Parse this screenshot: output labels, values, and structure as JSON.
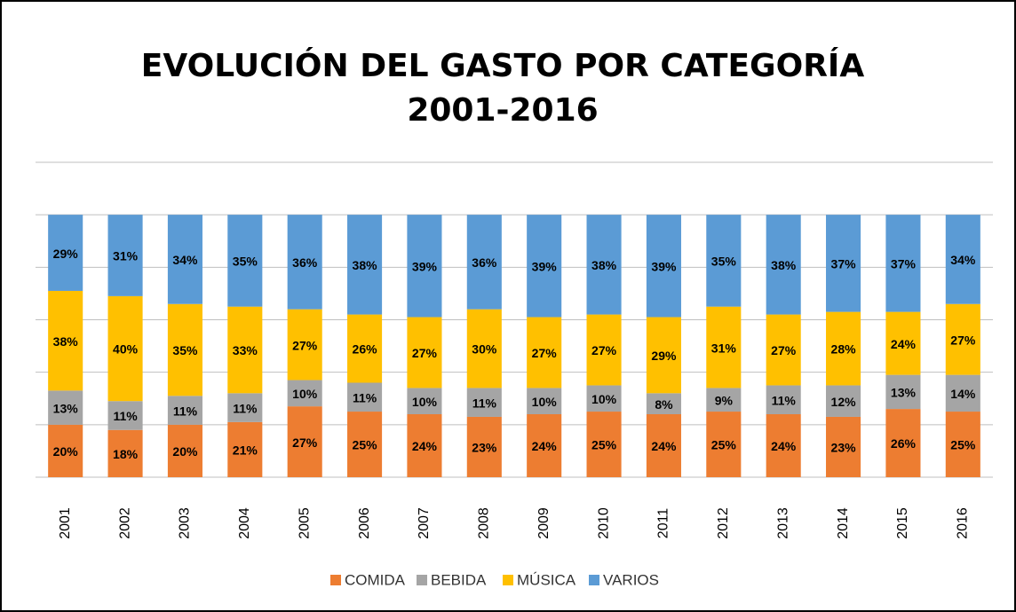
{
  "chart_data": {
    "type": "stacked_bar",
    "title": "EVOLUCIÓN DEL GASTO POR CATEGORÍA",
    "subtitle": "2001-2016",
    "categories": [
      "2001",
      "2002",
      "2003",
      "2004",
      "2005",
      "2006",
      "2007",
      "2008",
      "2009",
      "2010",
      "2011",
      "2012",
      "2013",
      "2014",
      "2015",
      "2016"
    ],
    "series": [
      {
        "name": "COMIDA",
        "color": "#ed7d31",
        "values": [
          20,
          18,
          20,
          21,
          27,
          25,
          24,
          23,
          24,
          25,
          24,
          25,
          24,
          23,
          26,
          25
        ],
        "value_labels": [
          "20%",
          "18%",
          "20%",
          "21%",
          "27%",
          "25%",
          "24%",
          "23%",
          "24%",
          "25%",
          "24%",
          "25%",
          "24%",
          "23%",
          "26%",
          "25%"
        ]
      },
      {
        "name": "BEBIDA",
        "color": "#a5a5a5",
        "values": [
          13,
          11,
          11,
          11,
          10,
          11,
          10,
          11,
          10,
          10,
          8,
          9,
          11,
          12,
          13,
          14
        ],
        "value_labels": [
          "13%",
          "11%",
          "11%",
          "11%",
          "10%",
          "11%",
          "10%",
          "11%",
          "10%",
          "10%",
          "8%",
          "9%",
          "11%",
          "12%",
          "13%",
          "14%"
        ]
      },
      {
        "name": "MÚSICA",
        "color": "#ffc000",
        "values": [
          38,
          40,
          35,
          33,
          27,
          26,
          27,
          30,
          27,
          27,
          29,
          31,
          27,
          28,
          24,
          27
        ],
        "value_labels": [
          "38%",
          "40%",
          "35%",
          "33%",
          "27%",
          "26%",
          "27%",
          "30%",
          "27%",
          "27%",
          "29%",
          "31%",
          "27%",
          "28%",
          "24%",
          "27%"
        ]
      },
      {
        "name": "VARIOS",
        "color": "#5b9bd5",
        "values": [
          29,
          31,
          34,
          35,
          36,
          38,
          39,
          36,
          39,
          38,
          39,
          35,
          38,
          37,
          37,
          34
        ],
        "value_labels": [
          "29%",
          "31%",
          "34%",
          "35%",
          "36%",
          "38%",
          "39%",
          "36%",
          "39%",
          "38%",
          "39%",
          "35%",
          "38%",
          "37%",
          "37%",
          "34%"
        ]
      }
    ],
    "ylim": [
      0,
      120
    ],
    "yticks": [
      0,
      20,
      40,
      60,
      80,
      100,
      120
    ],
    "grid": true,
    "legend": "bottom"
  }
}
